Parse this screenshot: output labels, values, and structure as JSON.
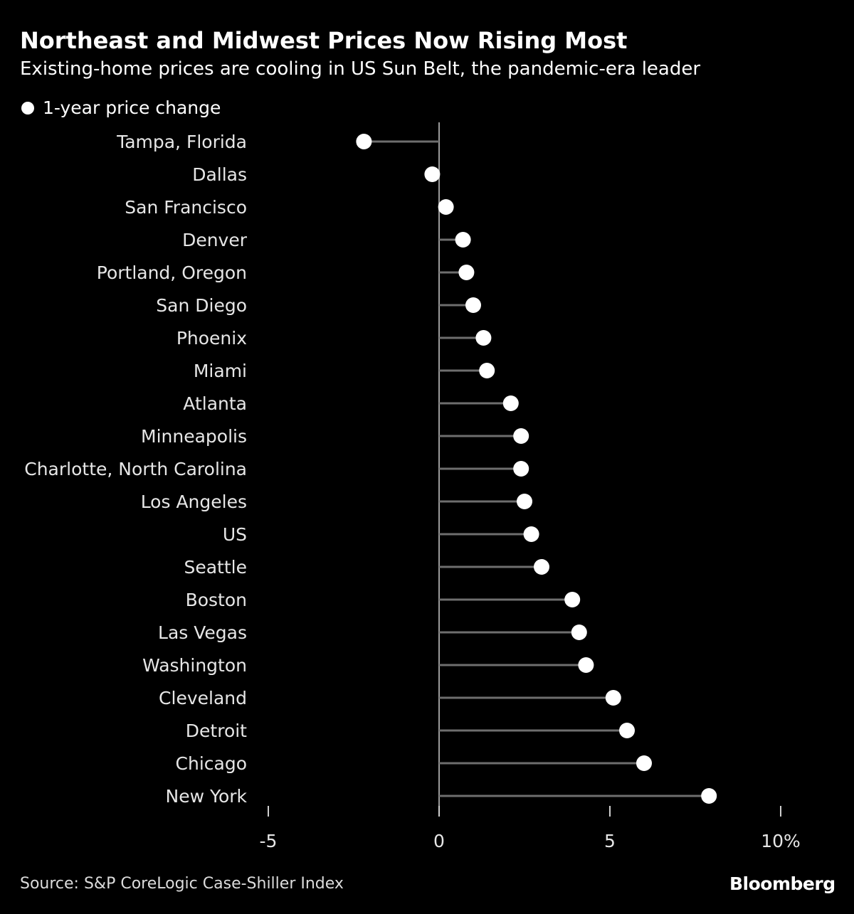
{
  "title": "Northeast and Midwest Prices Now Rising Most",
  "subtitle": "Existing-home prices are cooling in US Sun Belt, the pandemic-era leader",
  "source": "Source: S&P CoreLogic Case-Shiller Index",
  "brand": "Bloomberg",
  "colors": {
    "background": "#000000",
    "dot": "#ffffff",
    "stem": "#6e6e6e",
    "zero_line": "#9a9a9a",
    "text": "#ffffff"
  },
  "chart_data": {
    "type": "scatter",
    "title": "Northeast and Midwest Prices Now Rising Most",
    "subtitle": "Existing-home prices are cooling in US Sun Belt, the pandemic-era leader",
    "legend": [
      "1-year price change"
    ],
    "legend_position": "top-left",
    "grid": false,
    "categories": [
      "Tampa, Florida",
      "Dallas",
      "San Francisco",
      "Denver",
      "Portland, Oregon",
      "San Diego",
      "Phoenix",
      "Miami",
      "Atlanta",
      "Minneapolis",
      "Charlotte, North Carolina",
      "Los Angeles",
      "US",
      "Seattle",
      "Boston",
      "Las Vegas",
      "Washington",
      "Cleveland",
      "Detroit",
      "Chicago",
      "New York"
    ],
    "series": [
      {
        "name": "1-year price change",
        "values": [
          -2.2,
          -0.2,
          0.2,
          0.7,
          0.8,
          1.0,
          1.3,
          1.4,
          2.1,
          2.4,
          2.4,
          2.5,
          2.7,
          3.0,
          3.9,
          4.1,
          4.3,
          5.1,
          5.5,
          6.0,
          7.9
        ]
      }
    ],
    "xlim": [
      -5,
      10
    ],
    "xticks": [
      -5,
      0,
      5,
      10
    ],
    "xtick_labels": [
      "-5",
      "0",
      "5",
      "10%"
    ]
  }
}
